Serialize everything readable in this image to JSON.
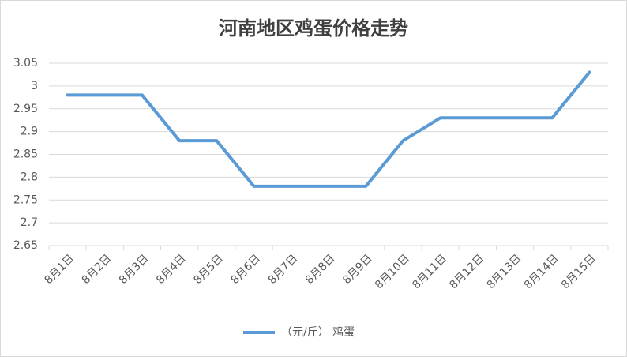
{
  "chart_data": {
    "type": "line",
    "title": "河南地区鸡蛋价格走势",
    "categories": [
      "8月1日",
      "8月2日",
      "8月3日",
      "8月4日",
      "8月5日",
      "8月6日",
      "8月7日",
      "8月8日",
      "8月9日",
      "8月10日",
      "8月11日",
      "8月12日",
      "8月13日",
      "8月14日",
      "8月15日"
    ],
    "series": [
      {
        "name": "（元/斤） 鸡蛋",
        "color": "#5b9bd5",
        "values": [
          2.98,
          2.98,
          2.98,
          2.88,
          2.88,
          2.78,
          2.78,
          2.78,
          2.78,
          2.88,
          2.93,
          2.93,
          2.93,
          2.93,
          3.03
        ]
      }
    ],
    "ylim": [
      2.65,
      3.05
    ],
    "yticks": [
      2.65,
      2.7,
      2.75,
      2.8,
      2.85,
      2.9,
      2.95,
      3,
      3.05
    ],
    "grid": true,
    "legend": "bottom"
  }
}
